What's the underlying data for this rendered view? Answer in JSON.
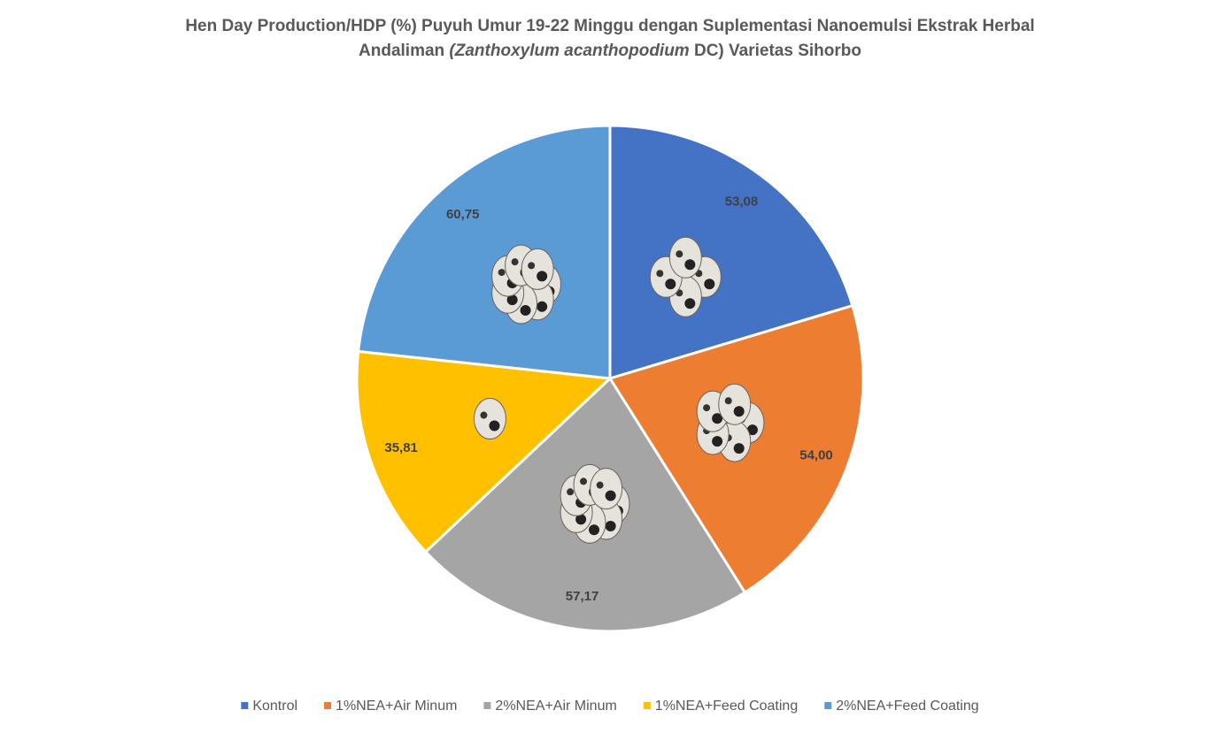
{
  "chart_data": {
    "type": "pie",
    "title": [
      "Hen Day Production/HDP (%) Puyuh Umur 19-22 Minggu dengan Suplementasi Nanoemulsi Ekstrak Herbal",
      "Andaliman ",
      "(Zanthoxylum acanthopodium",
      " DC) Varietas Sihorbo"
    ],
    "categories": [
      "Kontrol",
      "1%NEA+Air Minum",
      "2%NEA+Air Minum",
      "1%NEA+Feed Coating",
      "2%NEA+Feed Coating"
    ],
    "values": [
      53.08,
      54.0,
      57.17,
      35.81,
      60.75
    ],
    "value_labels": [
      "53,08",
      "54,00",
      "57,17",
      "35,81",
      "60,75"
    ],
    "colors": [
      "#4472c4",
      "#ed7d31",
      "#a5a5a5",
      "#ffc000",
      "#5b9bd5"
    ],
    "legend": "bottom"
  }
}
